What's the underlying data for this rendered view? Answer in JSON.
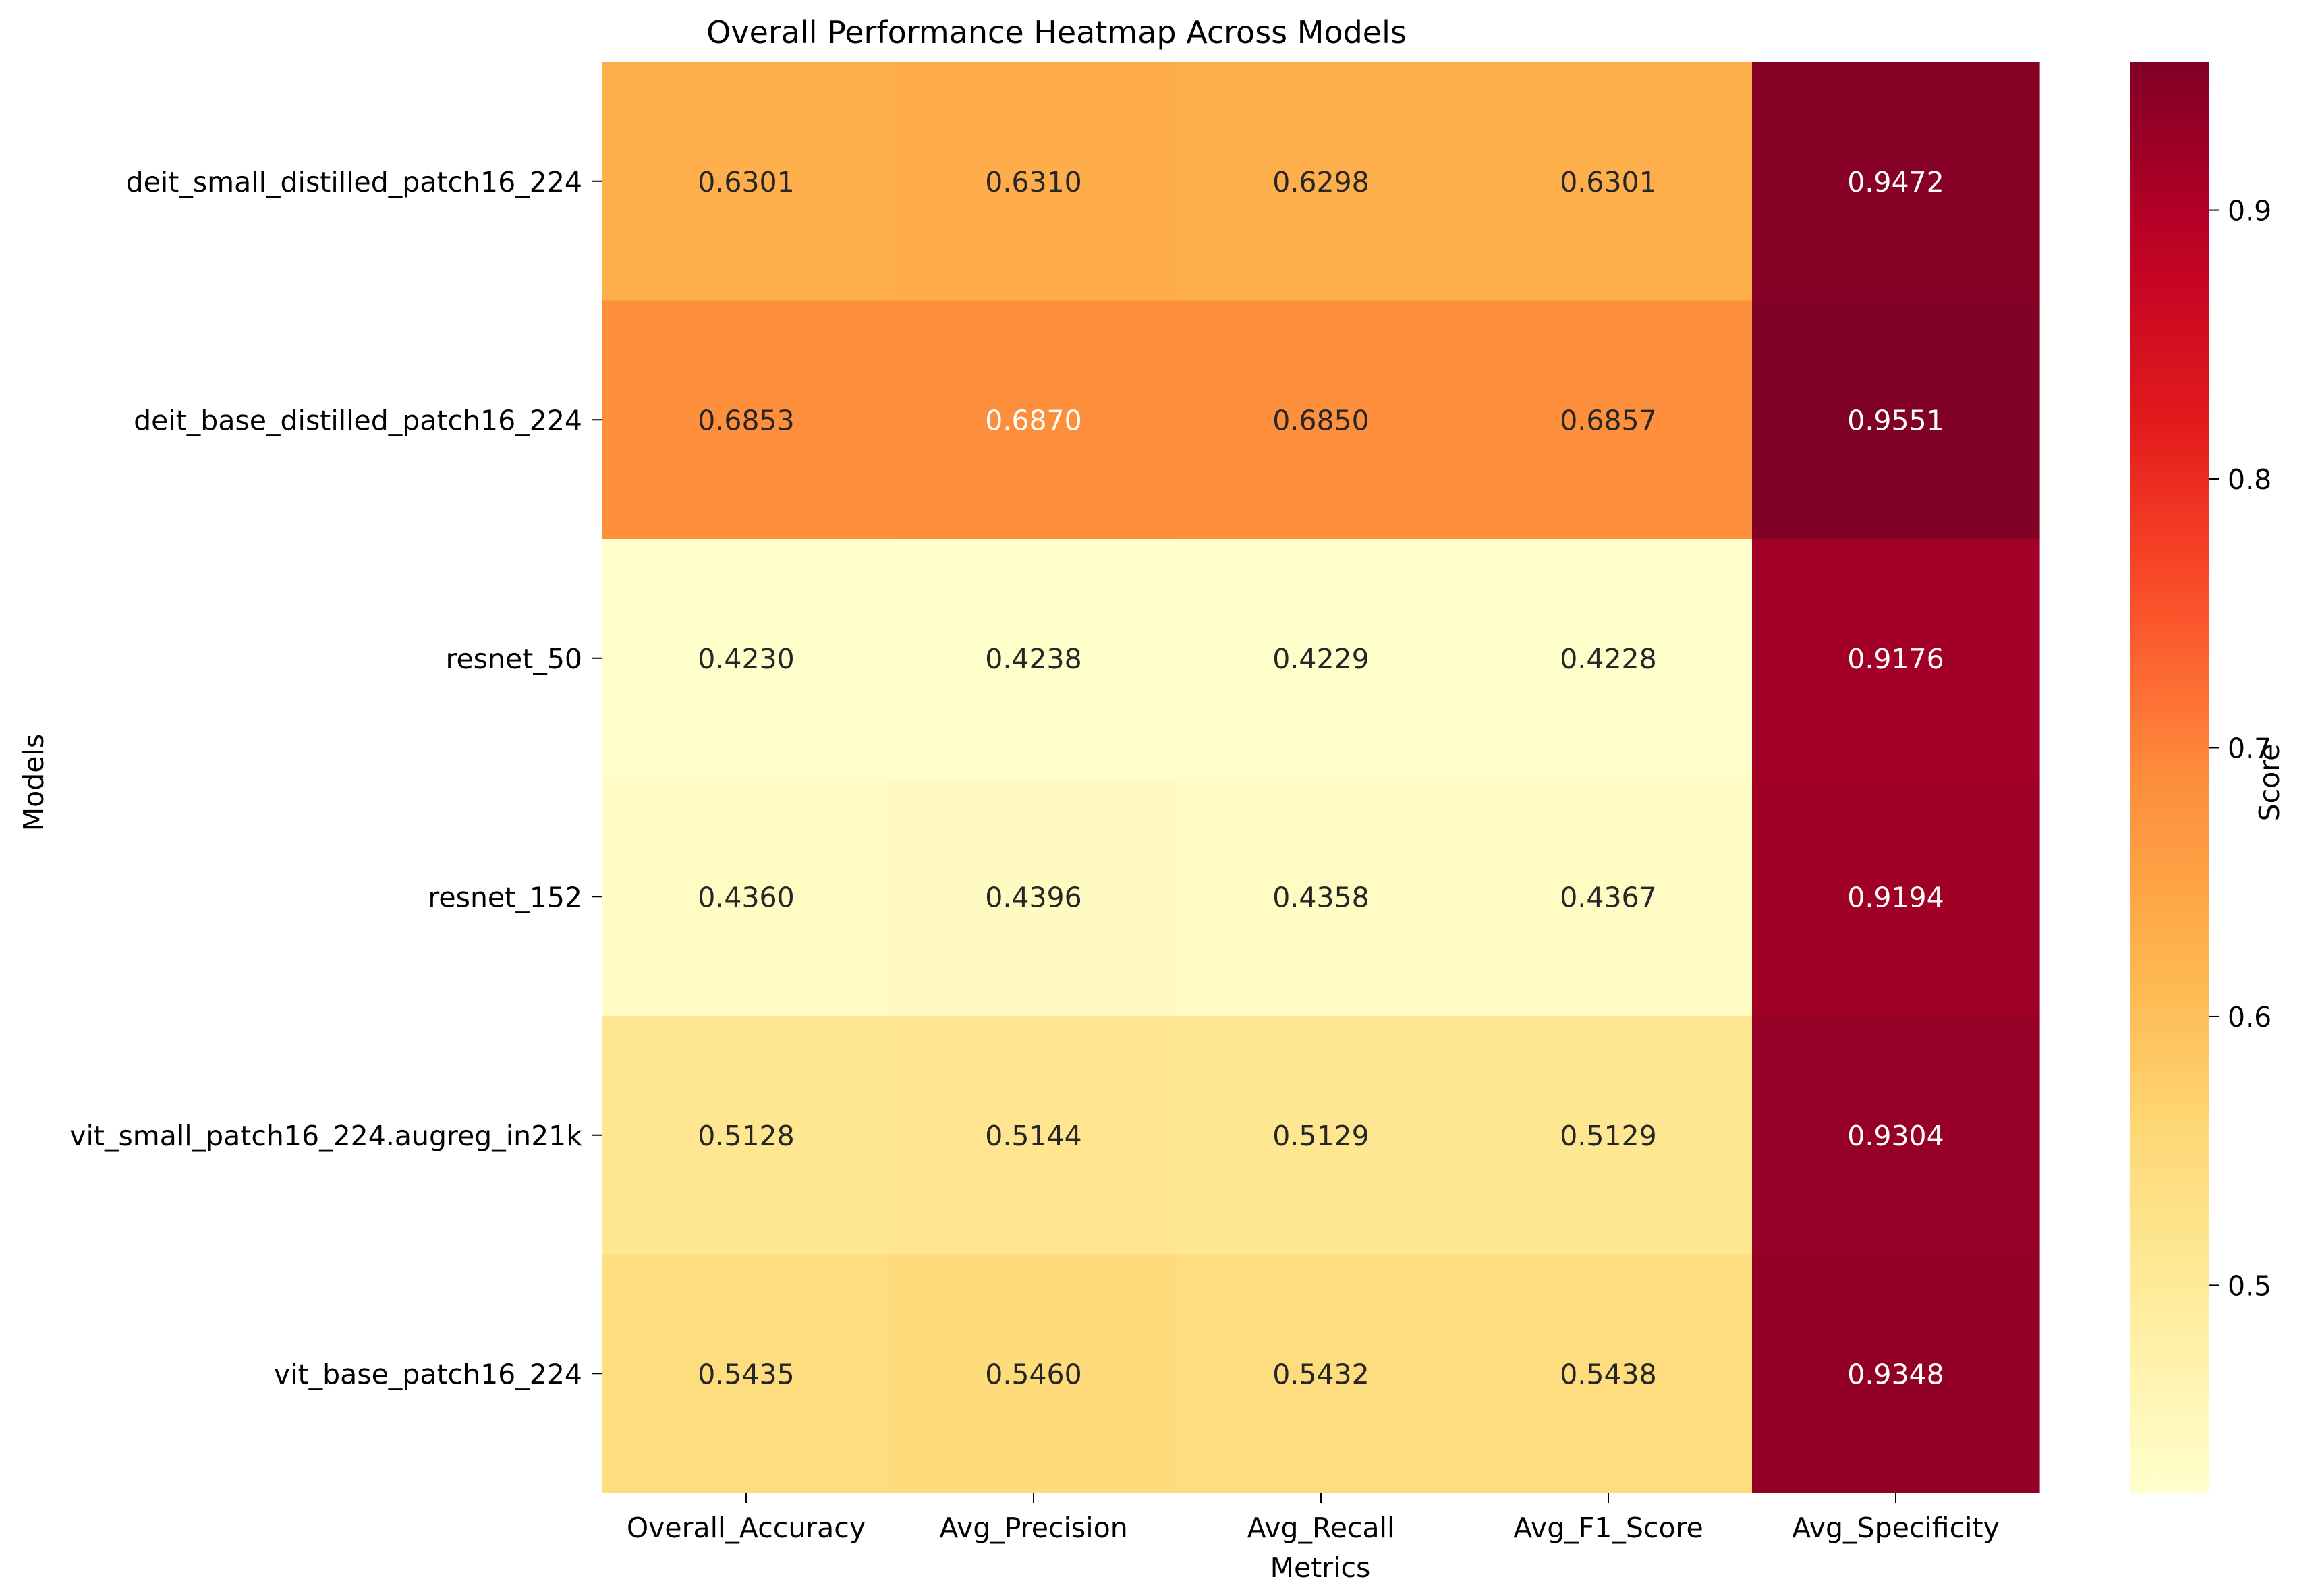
{
  "chart_data": {
    "type": "heatmap",
    "title": "Overall Performance Heatmap Across Models",
    "xlabel": "Metrics",
    "ylabel": "Models",
    "colorbar_label": "Score",
    "colormap": "YlOrRd",
    "rows": [
      "deit_small_distilled_patch16_224",
      "deit_base_distilled_patch16_224",
      "resnet_50",
      "resnet_152",
      "vit_small_patch16_224.augreg_in21k",
      "vit_base_patch16_224"
    ],
    "columns": [
      "Overall_Accuracy",
      "Avg_Precision",
      "Avg_Recall",
      "Avg_F1_Score",
      "Avg_Specificity"
    ],
    "values": [
      [
        0.6301,
        0.631,
        0.6298,
        0.6301,
        0.9472
      ],
      [
        0.6853,
        0.687,
        0.685,
        0.6857,
        0.9551
      ],
      [
        0.423,
        0.4238,
        0.4229,
        0.4228,
        0.9176
      ],
      [
        0.436,
        0.4396,
        0.4358,
        0.4367,
        0.9194
      ],
      [
        0.5128,
        0.5144,
        0.5129,
        0.5129,
        0.9304
      ],
      [
        0.5435,
        0.546,
        0.5432,
        0.5438,
        0.9348
      ]
    ],
    "value_labels": [
      [
        "0.6301",
        "0.6310",
        "0.6298",
        "0.6301",
        "0.9472"
      ],
      [
        "0.6853",
        "0.6870",
        "0.6850",
        "0.6857",
        "0.9551"
      ],
      [
        "0.4230",
        "0.4238",
        "0.4229",
        "0.4228",
        "0.9176"
      ],
      [
        "0.4360",
        "0.4396",
        "0.4358",
        "0.4367",
        "0.9194"
      ],
      [
        "0.5128",
        "0.5144",
        "0.5129",
        "0.5129",
        "0.9304"
      ],
      [
        "0.5435",
        "0.5460",
        "0.5432",
        "0.5438",
        "0.9348"
      ]
    ],
    "color_range": [
      0.4228,
      0.9551
    ],
    "colorbar_ticks": [
      "0.5",
      "0.6",
      "0.7",
      "0.8",
      "0.9"
    ],
    "annotation_colors": {
      "dark": "#262626",
      "light": "#ffffff"
    }
  }
}
